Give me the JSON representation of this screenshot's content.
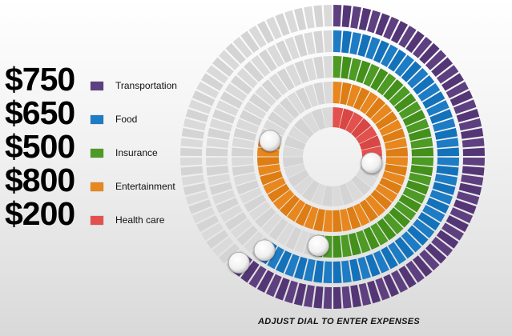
{
  "expenses": [
    {
      "id": "transportation",
      "value": "$750",
      "label": "Transportation",
      "color": "#5e4080",
      "fraction": 0.615
    },
    {
      "id": "food",
      "value": "$650",
      "label": "Food",
      "color": "#1d7cc4",
      "fraction": 0.6
    },
    {
      "id": "insurance",
      "value": "$500",
      "label": "Insurance",
      "color": "#4d9a25",
      "fraction": 0.525
    },
    {
      "id": "entertainment",
      "value": "$800",
      "label": "Entertainment",
      "color": "#e8871e",
      "fraction": 0.79
    },
    {
      "id": "health-care",
      "value": "$200",
      "label": "Health care",
      "color": "#e3514e",
      "fraction": 0.275
    }
  ],
  "caption": "ADJUST DIAL TO ENTER EXPENSES",
  "track_color": "#d4d4d4"
}
